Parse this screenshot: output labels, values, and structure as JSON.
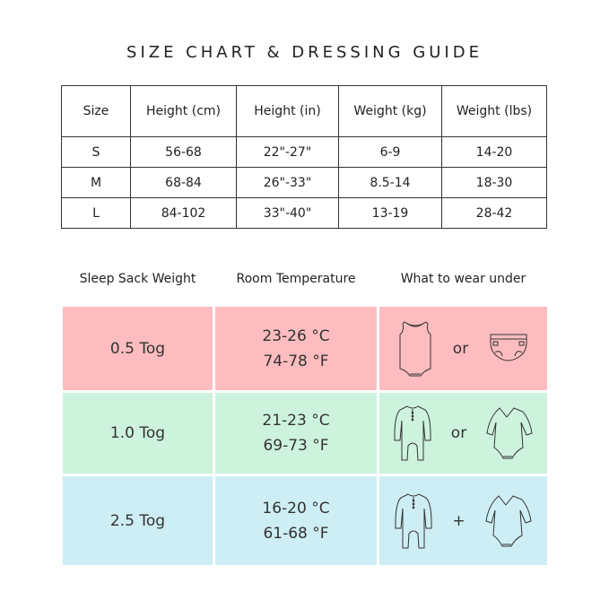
{
  "title": "SIZE CHART & DRESSING GUIDE",
  "size_table": {
    "headers": [
      "Size",
      "Height (cm)",
      "Height (in)",
      "Weight (kg)",
      "Weight (lbs)"
    ],
    "rows": [
      [
        "S",
        "56-68",
        "22\"-27\"",
        "6-9",
        "14-20"
      ],
      [
        "M",
        "68-84",
        "26\"-33\"",
        "8.5-14",
        "18-30"
      ],
      [
        "L",
        "84-102",
        "33\"-40\"",
        "13-19",
        "28-42"
      ]
    ]
  },
  "guide": {
    "headers": [
      "Sleep Sack Weight",
      "Room Temperature",
      "What to wear under"
    ],
    "rows": [
      {
        "tog": "0.5 Tog",
        "celsius": "23-26 °C",
        "fahrenheit": "74-78 °F",
        "icon_a": "sleeveless-bodysuit-icon",
        "connector": "or",
        "icon_b": "diaper-icon",
        "color": "#fdbcbf"
      },
      {
        "tog": "1.0 Tog",
        "celsius": "21-23 °C",
        "fahrenheit": "69-73 °F",
        "icon_a": "footless-romper-icon",
        "connector": "or",
        "icon_b": "long-sleeve-bodysuit-icon",
        "color": "#cdf3dc"
      },
      {
        "tog": "2.5 Tog",
        "celsius": "16-20 °C",
        "fahrenheit": "61-68 °F",
        "icon_a": "footless-romper-icon",
        "connector": "+",
        "icon_b": "long-sleeve-bodysuit-icon",
        "color": "#cdeef4"
      }
    ]
  }
}
